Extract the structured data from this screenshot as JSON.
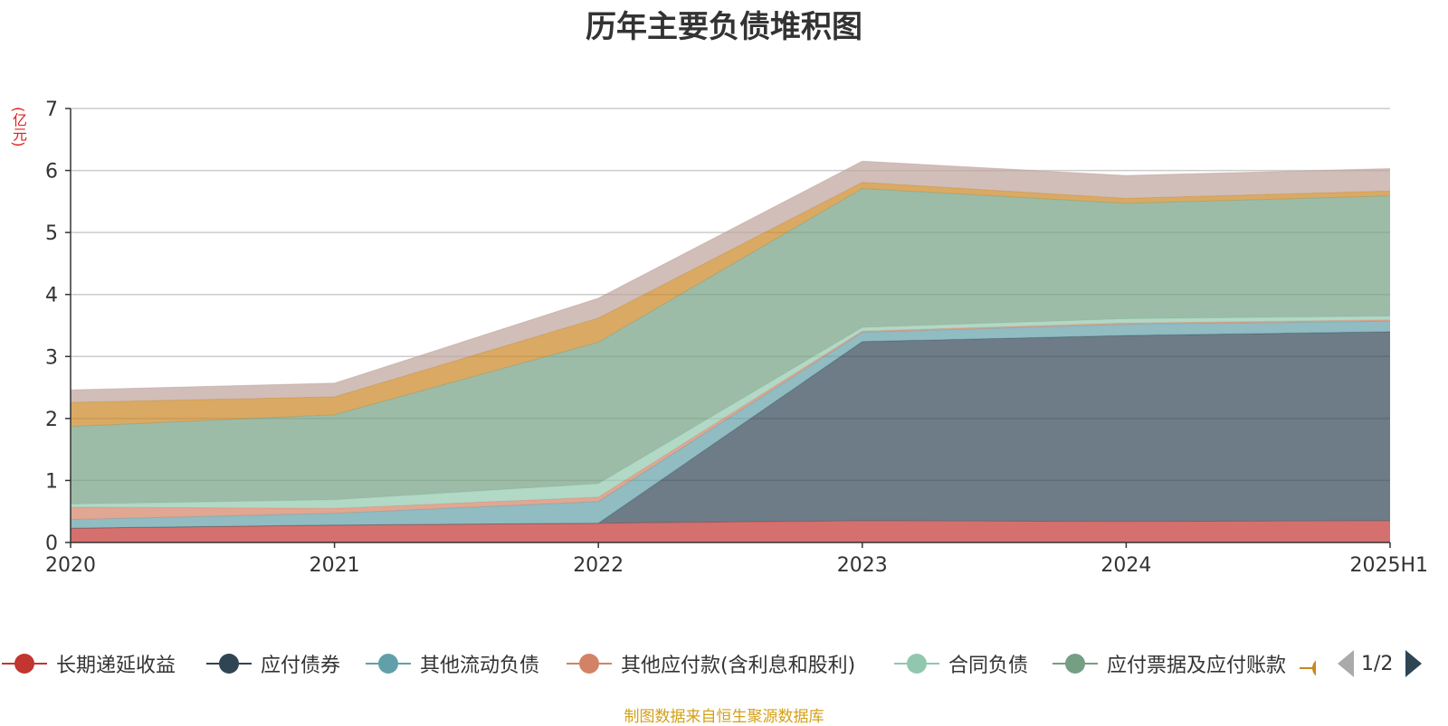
{
  "chart_data": {
    "type": "area",
    "stacked": true,
    "title": "历年主要负债堆积图",
    "unit_label": "(亿元)",
    "categories": [
      "2020",
      "2021",
      "2022",
      "2023",
      "2024",
      "2025H1"
    ],
    "ylim": [
      0,
      7
    ],
    "yticks": [
      0,
      1,
      2,
      3,
      4,
      5,
      6,
      7
    ],
    "grid": true,
    "legend_position": "bottom",
    "series": [
      {
        "name": "长期递延收益",
        "color": "#c23531",
        "values": [
          0.23,
          0.28,
          0.31,
          0.35,
          0.34,
          0.35
        ]
      },
      {
        "name": "应付债券",
        "color": "#2f4554",
        "values": [
          0,
          0,
          0,
          2.89,
          3.0,
          3.05
        ]
      },
      {
        "name": "其他流动负债",
        "color": "#61a0a8",
        "values": [
          0.14,
          0.19,
          0.35,
          0.15,
          0.18,
          0.17
        ]
      },
      {
        "name": "其他应付款(含利息和股利)",
        "color": "#d48265",
        "values": [
          0.2,
          0.08,
          0.07,
          0.02,
          0.02,
          0.02
        ]
      },
      {
        "name": "合同负债",
        "color": "#91c7ae",
        "values": [
          0.05,
          0.14,
          0.22,
          0.06,
          0.07,
          0.06
        ]
      },
      {
        "name": "应付票据及应付账款",
        "color": "#749f83",
        "values": [
          1.25,
          1.37,
          2.28,
          2.24,
          1.86,
          1.94
        ]
      },
      {
        "name": "",
        "color": "#ca8622",
        "values": [
          0.39,
          0.29,
          0.39,
          0.1,
          0.08,
          0.08
        ]
      },
      {
        "name": "",
        "color": "#bda29a",
        "values": [
          0.2,
          0.22,
          0.32,
          0.34,
          0.37,
          0.36
        ]
      }
    ]
  },
  "legend": {
    "items": [
      {
        "label": "长期递延收益",
        "color": "#c23531"
      },
      {
        "label": "应付债券",
        "color": "#2f4554"
      },
      {
        "label": "其他流动负债",
        "color": "#61a0a8"
      },
      {
        "label": "其他应付款(含利息和股利)",
        "color": "#d48265"
      },
      {
        "label": "合同负债",
        "color": "#91c7ae"
      },
      {
        "label": "应付票据及应付账款",
        "color": "#749f83"
      }
    ],
    "clipped_color": "#ca8622",
    "page": "1/2"
  },
  "source": "制图数据来自恒生聚源数据库"
}
